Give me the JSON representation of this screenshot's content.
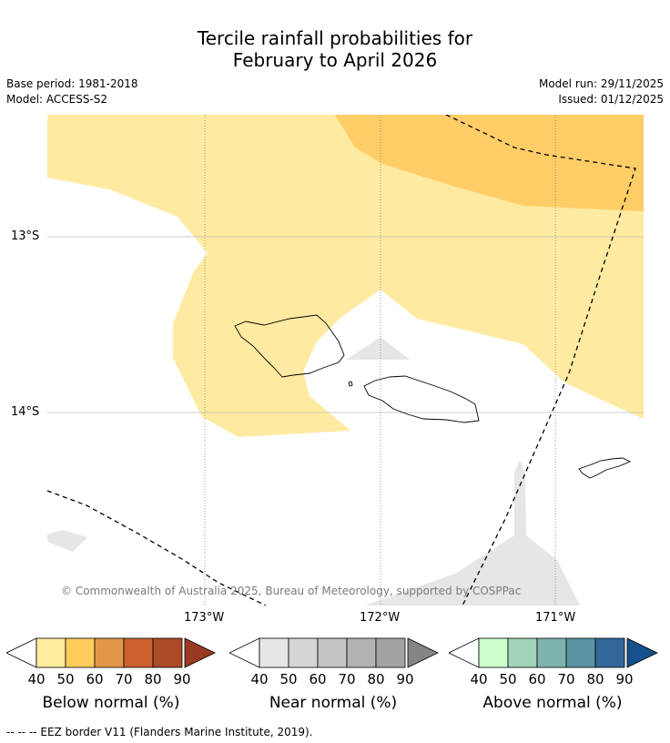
{
  "title_line1": "Tercile rainfall probabilities for",
  "title_line2": "February to April 2026",
  "base_period": "Base period: 1981-2018",
  "model": "Model: ACCESS-S2",
  "model_run": "Model run: 29/11/2025",
  "issued": "Issued: 01/12/2025",
  "lat_labels": [
    "13°S",
    "14°S"
  ],
  "lon_labels": [
    "173°W",
    "172°W",
    "171°W"
  ],
  "credit": "© Commonwealth of Australia 2025, Bureau of Meteorology, supported by COSPPac",
  "eez_note": "--  --  -- EEZ border V11 (Flanders Marine Institute, 2019).",
  "colorbars": [
    {
      "label": "Below normal (%)",
      "ticks": [
        "40",
        "50",
        "60",
        "70",
        "80",
        "90"
      ],
      "colors": [
        "#ffeda0",
        "#fecc5c",
        "#e3964a",
        "#cd6031",
        "#ad4a28",
        "#993a22"
      ]
    },
    {
      "label": "Near normal (%)",
      "ticks": [
        "40",
        "50",
        "60",
        "70",
        "80",
        "90"
      ],
      "colors": [
        "#e6e6e6",
        "#d6d6d6",
        "#c4c4c4",
        "#b3b3b3",
        "#a3a3a3",
        "#858585"
      ]
    },
    {
      "label": "Above normal (%)",
      "ticks": [
        "40",
        "50",
        "60",
        "70",
        "80",
        "90"
      ],
      "colors": [
        "#ccffcc",
        "#a1d4ba",
        "#7fb3ae",
        "#5b94a3",
        "#336699",
        "#15518c"
      ]
    }
  ],
  "map_colors": {
    "below_40_50": "#ffeaa1",
    "below_50_60": "#fecd66",
    "near_40_50": "#e6e6e6"
  }
}
